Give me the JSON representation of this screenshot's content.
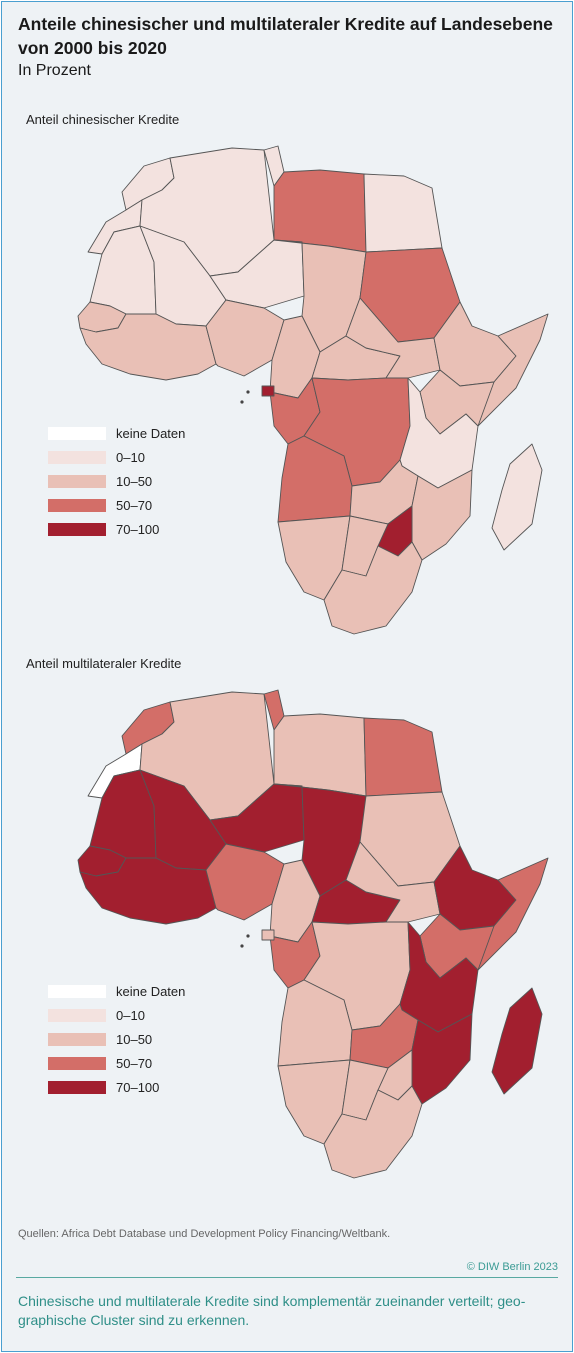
{
  "title": "Anteile chinesischer und multilateraler Kredite auf Landesebene von 2000 bis 2020",
  "subtitle": "In Prozent",
  "legend": [
    {
      "label": "keine Daten",
      "color": "#ffffff"
    },
    {
      "label": "0–10",
      "color": "#f3e2df"
    },
    {
      "label": "10–50",
      "color": "#e9c0b6"
    },
    {
      "label": "50–70",
      "color": "#d36e68"
    },
    {
      "label": "70–100",
      "color": "#a21f2f"
    }
  ],
  "maps": [
    {
      "title": "Anteil chinesischer Kredite",
      "regions": [
        {
          "name": "Morocco",
          "class": "0–10"
        },
        {
          "name": "Western Sahara",
          "class": "0–10"
        },
        {
          "name": "Algeria",
          "class": "0–10"
        },
        {
          "name": "Tunisia",
          "class": "0–10"
        },
        {
          "name": "Libya",
          "class": "50–70"
        },
        {
          "name": "Egypt",
          "class": "0–10"
        },
        {
          "name": "Mauritania",
          "class": "0–10"
        },
        {
          "name": "Mali",
          "class": "0–10"
        },
        {
          "name": "Niger",
          "class": "0–10"
        },
        {
          "name": "Chad",
          "class": "10–50"
        },
        {
          "name": "Sudan",
          "class": "50–70"
        },
        {
          "name": "Senegal",
          "class": "10–50"
        },
        {
          "name": "West Africa coast",
          "class": "10–50"
        },
        {
          "name": "Nigeria",
          "class": "10–50"
        },
        {
          "name": "Cameroon",
          "class": "10–50"
        },
        {
          "name": "Central African Republic",
          "class": "10–50"
        },
        {
          "name": "South Sudan",
          "class": "10–50"
        },
        {
          "name": "Ethiopia",
          "class": "10–50"
        },
        {
          "name": "Somalia",
          "class": "10–50"
        },
        {
          "name": "Gabon / Congo",
          "class": "50–70"
        },
        {
          "name": "Equatorial Guinea",
          "class": "70–100"
        },
        {
          "name": "DR Congo",
          "class": "50–70"
        },
        {
          "name": "Kenya",
          "class": "10–50"
        },
        {
          "name": "Tanzania",
          "class": "0–10"
        },
        {
          "name": "Angola",
          "class": "50–70"
        },
        {
          "name": "Zambia",
          "class": "10–50"
        },
        {
          "name": "Mozambique",
          "class": "10–50"
        },
        {
          "name": "Zimbabwe",
          "class": "70–100"
        },
        {
          "name": "Namibia",
          "class": "10–50"
        },
        {
          "name": "Botswana",
          "class": "10–50"
        },
        {
          "name": "South Africa",
          "class": "10–50"
        },
        {
          "name": "Madagascar",
          "class": "0–10"
        }
      ]
    },
    {
      "title": "Anteil multilateraler Kredite",
      "regions": [
        {
          "name": "Morocco",
          "class": "50–70"
        },
        {
          "name": "Western Sahara",
          "class": "keine Daten"
        },
        {
          "name": "Algeria",
          "class": "10–50"
        },
        {
          "name": "Tunisia",
          "class": "50–70"
        },
        {
          "name": "Libya",
          "class": "10–50"
        },
        {
          "name": "Egypt",
          "class": "50–70"
        },
        {
          "name": "Mauritania",
          "class": "70–100"
        },
        {
          "name": "Mali",
          "class": "70–100"
        },
        {
          "name": "Niger",
          "class": "70–100"
        },
        {
          "name": "Chad",
          "class": "70–100"
        },
        {
          "name": "Sudan",
          "class": "10–50"
        },
        {
          "name": "Senegal",
          "class": "70–100"
        },
        {
          "name": "West Africa coast",
          "class": "70–100"
        },
        {
          "name": "Nigeria",
          "class": "50–70"
        },
        {
          "name": "Cameroon",
          "class": "10–50"
        },
        {
          "name": "Central African Republic",
          "class": "70–100"
        },
        {
          "name": "South Sudan",
          "class": "10–50"
        },
        {
          "name": "Ethiopia",
          "class": "70–100"
        },
        {
          "name": "Somalia",
          "class": "50–70"
        },
        {
          "name": "Gabon / Congo",
          "class": "50–70"
        },
        {
          "name": "Equatorial Guinea",
          "class": "10–50"
        },
        {
          "name": "DR Congo",
          "class": "10–50"
        },
        {
          "name": "Kenya",
          "class": "50–70"
        },
        {
          "name": "Tanzania",
          "class": "70–100"
        },
        {
          "name": "Angola",
          "class": "10–50"
        },
        {
          "name": "Zambia",
          "class": "50–70"
        },
        {
          "name": "Mozambique",
          "class": "70–100"
        },
        {
          "name": "Zimbabwe",
          "class": "10–50"
        },
        {
          "name": "Namibia",
          "class": "10–50"
        },
        {
          "name": "Botswana",
          "class": "10–50"
        },
        {
          "name": "South Africa",
          "class": "10–50"
        },
        {
          "name": "Madagascar",
          "class": "70–100"
        }
      ]
    }
  ],
  "source": "Quellen: Africa Debt Database und Development Policy Financing/Weltbank.",
  "copyright": "© DIW Berlin 2023",
  "caption": "Chinesische und multilaterale Kredite sind komplementär zueinander verteilt; geo-graphische Cluster sind zu erkennen."
}
